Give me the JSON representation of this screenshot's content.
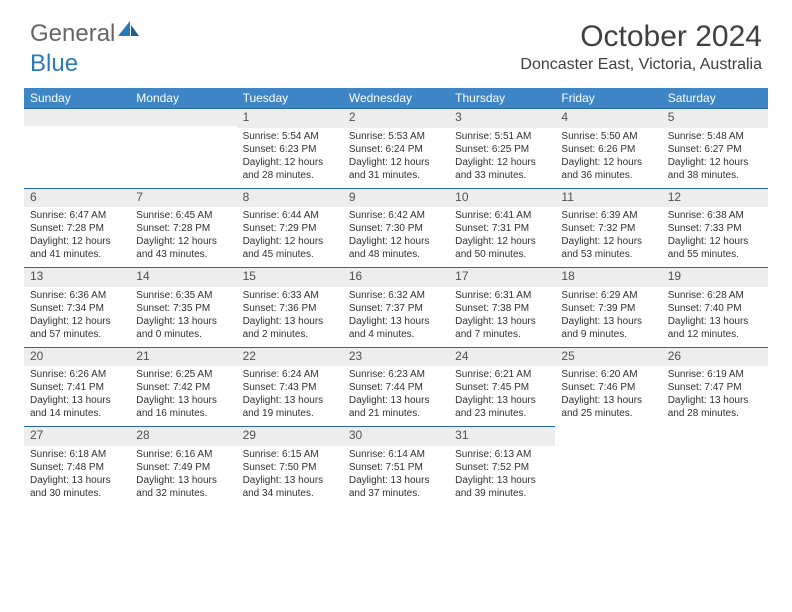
{
  "logo": {
    "part1": "General",
    "part2": "Blue"
  },
  "title": "October 2024",
  "location": "Doncaster East, Victoria, Australia",
  "colors": {
    "header_bg": "#3e85c6",
    "header_text": "#ffffff",
    "rule": "#2a6aa8",
    "numrow_bg": "#ededed",
    "body_text": "#303030",
    "title_text": "#404040",
    "logo_gray": "#666666",
    "logo_blue": "#2a7ab9"
  },
  "weekdays": [
    "Sunday",
    "Monday",
    "Tuesday",
    "Wednesday",
    "Thursday",
    "Friday",
    "Saturday"
  ],
  "leading_blanks": 2,
  "days": [
    {
      "n": "1",
      "sunrise": "Sunrise: 5:54 AM",
      "sunset": "Sunset: 6:23 PM",
      "d1": "Daylight: 12 hours",
      "d2": "and 28 minutes."
    },
    {
      "n": "2",
      "sunrise": "Sunrise: 5:53 AM",
      "sunset": "Sunset: 6:24 PM",
      "d1": "Daylight: 12 hours",
      "d2": "and 31 minutes."
    },
    {
      "n": "3",
      "sunrise": "Sunrise: 5:51 AM",
      "sunset": "Sunset: 6:25 PM",
      "d1": "Daylight: 12 hours",
      "d2": "and 33 minutes."
    },
    {
      "n": "4",
      "sunrise": "Sunrise: 5:50 AM",
      "sunset": "Sunset: 6:26 PM",
      "d1": "Daylight: 12 hours",
      "d2": "and 36 minutes."
    },
    {
      "n": "5",
      "sunrise": "Sunrise: 5:48 AM",
      "sunset": "Sunset: 6:27 PM",
      "d1": "Daylight: 12 hours",
      "d2": "and 38 minutes."
    },
    {
      "n": "6",
      "sunrise": "Sunrise: 6:47 AM",
      "sunset": "Sunset: 7:28 PM",
      "d1": "Daylight: 12 hours",
      "d2": "and 41 minutes."
    },
    {
      "n": "7",
      "sunrise": "Sunrise: 6:45 AM",
      "sunset": "Sunset: 7:28 PM",
      "d1": "Daylight: 12 hours",
      "d2": "and 43 minutes."
    },
    {
      "n": "8",
      "sunrise": "Sunrise: 6:44 AM",
      "sunset": "Sunset: 7:29 PM",
      "d1": "Daylight: 12 hours",
      "d2": "and 45 minutes."
    },
    {
      "n": "9",
      "sunrise": "Sunrise: 6:42 AM",
      "sunset": "Sunset: 7:30 PM",
      "d1": "Daylight: 12 hours",
      "d2": "and 48 minutes."
    },
    {
      "n": "10",
      "sunrise": "Sunrise: 6:41 AM",
      "sunset": "Sunset: 7:31 PM",
      "d1": "Daylight: 12 hours",
      "d2": "and 50 minutes."
    },
    {
      "n": "11",
      "sunrise": "Sunrise: 6:39 AM",
      "sunset": "Sunset: 7:32 PM",
      "d1": "Daylight: 12 hours",
      "d2": "and 53 minutes."
    },
    {
      "n": "12",
      "sunrise": "Sunrise: 6:38 AM",
      "sunset": "Sunset: 7:33 PM",
      "d1": "Daylight: 12 hours",
      "d2": "and 55 minutes."
    },
    {
      "n": "13",
      "sunrise": "Sunrise: 6:36 AM",
      "sunset": "Sunset: 7:34 PM",
      "d1": "Daylight: 12 hours",
      "d2": "and 57 minutes."
    },
    {
      "n": "14",
      "sunrise": "Sunrise: 6:35 AM",
      "sunset": "Sunset: 7:35 PM",
      "d1": "Daylight: 13 hours",
      "d2": "and 0 minutes."
    },
    {
      "n": "15",
      "sunrise": "Sunrise: 6:33 AM",
      "sunset": "Sunset: 7:36 PM",
      "d1": "Daylight: 13 hours",
      "d2": "and 2 minutes."
    },
    {
      "n": "16",
      "sunrise": "Sunrise: 6:32 AM",
      "sunset": "Sunset: 7:37 PM",
      "d1": "Daylight: 13 hours",
      "d2": "and 4 minutes."
    },
    {
      "n": "17",
      "sunrise": "Sunrise: 6:31 AM",
      "sunset": "Sunset: 7:38 PM",
      "d1": "Daylight: 13 hours",
      "d2": "and 7 minutes."
    },
    {
      "n": "18",
      "sunrise": "Sunrise: 6:29 AM",
      "sunset": "Sunset: 7:39 PM",
      "d1": "Daylight: 13 hours",
      "d2": "and 9 minutes."
    },
    {
      "n": "19",
      "sunrise": "Sunrise: 6:28 AM",
      "sunset": "Sunset: 7:40 PM",
      "d1": "Daylight: 13 hours",
      "d2": "and 12 minutes."
    },
    {
      "n": "20",
      "sunrise": "Sunrise: 6:26 AM",
      "sunset": "Sunset: 7:41 PM",
      "d1": "Daylight: 13 hours",
      "d2": "and 14 minutes."
    },
    {
      "n": "21",
      "sunrise": "Sunrise: 6:25 AM",
      "sunset": "Sunset: 7:42 PM",
      "d1": "Daylight: 13 hours",
      "d2": "and 16 minutes."
    },
    {
      "n": "22",
      "sunrise": "Sunrise: 6:24 AM",
      "sunset": "Sunset: 7:43 PM",
      "d1": "Daylight: 13 hours",
      "d2": "and 19 minutes."
    },
    {
      "n": "23",
      "sunrise": "Sunrise: 6:23 AM",
      "sunset": "Sunset: 7:44 PM",
      "d1": "Daylight: 13 hours",
      "d2": "and 21 minutes."
    },
    {
      "n": "24",
      "sunrise": "Sunrise: 6:21 AM",
      "sunset": "Sunset: 7:45 PM",
      "d1": "Daylight: 13 hours",
      "d2": "and 23 minutes."
    },
    {
      "n": "25",
      "sunrise": "Sunrise: 6:20 AM",
      "sunset": "Sunset: 7:46 PM",
      "d1": "Daylight: 13 hours",
      "d2": "and 25 minutes."
    },
    {
      "n": "26",
      "sunrise": "Sunrise: 6:19 AM",
      "sunset": "Sunset: 7:47 PM",
      "d1": "Daylight: 13 hours",
      "d2": "and 28 minutes."
    },
    {
      "n": "27",
      "sunrise": "Sunrise: 6:18 AM",
      "sunset": "Sunset: 7:48 PM",
      "d1": "Daylight: 13 hours",
      "d2": "and 30 minutes."
    },
    {
      "n": "28",
      "sunrise": "Sunrise: 6:16 AM",
      "sunset": "Sunset: 7:49 PM",
      "d1": "Daylight: 13 hours",
      "d2": "and 32 minutes."
    },
    {
      "n": "29",
      "sunrise": "Sunrise: 6:15 AM",
      "sunset": "Sunset: 7:50 PM",
      "d1": "Daylight: 13 hours",
      "d2": "and 34 minutes."
    },
    {
      "n": "30",
      "sunrise": "Sunrise: 6:14 AM",
      "sunset": "Sunset: 7:51 PM",
      "d1": "Daylight: 13 hours",
      "d2": "and 37 minutes."
    },
    {
      "n": "31",
      "sunrise": "Sunrise: 6:13 AM",
      "sunset": "Sunset: 7:52 PM",
      "d1": "Daylight: 13 hours",
      "d2": "and 39 minutes."
    }
  ]
}
